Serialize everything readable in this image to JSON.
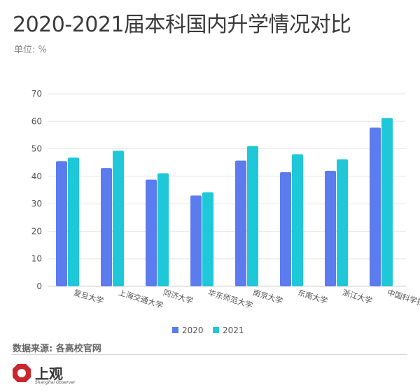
{
  "header": {
    "title": "2020-2021届本科国内升学情况对比",
    "unit": "单位: %"
  },
  "footer": {
    "source": "数据来源: 各高校官网",
    "logo_text": "上观",
    "logo_sub": "Shanghai Observer"
  },
  "colors": {
    "series_2020": "#5b7bef",
    "series_2021": "#1ec8d8",
    "grid": "#e6e6e6",
    "axis_text": "#555555"
  },
  "chart_data": {
    "type": "bar",
    "categories": [
      "复旦大学",
      "上海交通大学",
      "同济大学",
      "华东师范大学",
      "南京大学",
      "东南大学",
      "浙江大学",
      "中国科学技术大学"
    ],
    "series": [
      {
        "name": "2020",
        "values": [
          45.5,
          43,
          38.8,
          33,
          45.7,
          41.5,
          42,
          57.7
        ]
      },
      {
        "name": "2021",
        "values": [
          46.8,
          49.3,
          41.1,
          34.2,
          51,
          48,
          46.2,
          61.2
        ]
      }
    ],
    "ylim": [
      0,
      70
    ],
    "yticks": [
      0,
      10,
      20,
      30,
      40,
      50,
      60,
      70
    ],
    "grid": true,
    "legend": "bottom"
  }
}
